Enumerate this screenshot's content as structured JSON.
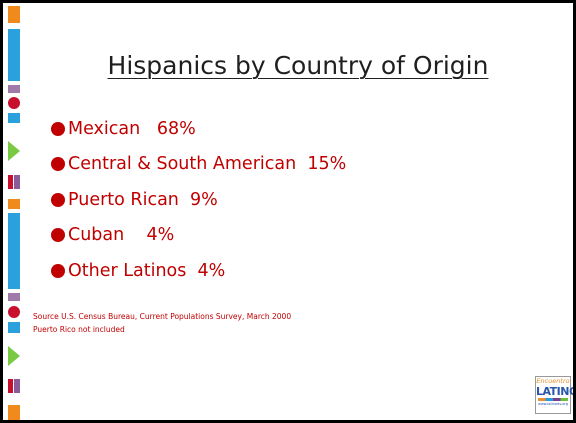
{
  "title": "Hispanics by Country of Origin",
  "bullets": [
    "Mexican   68%",
    "Central & South American  15%",
    "Puerto Rican  9%",
    "Cuban    4%",
    "Other Latinos  4%"
  ],
  "source": [
    "Source U.S. Census Bureau, Current Populations Survey, March 2000",
    "Puerto Rico not included"
  ],
  "logo": {
    "top": "Encuentro",
    "name": "LATINO",
    "url": "www.latinodv.org"
  }
}
